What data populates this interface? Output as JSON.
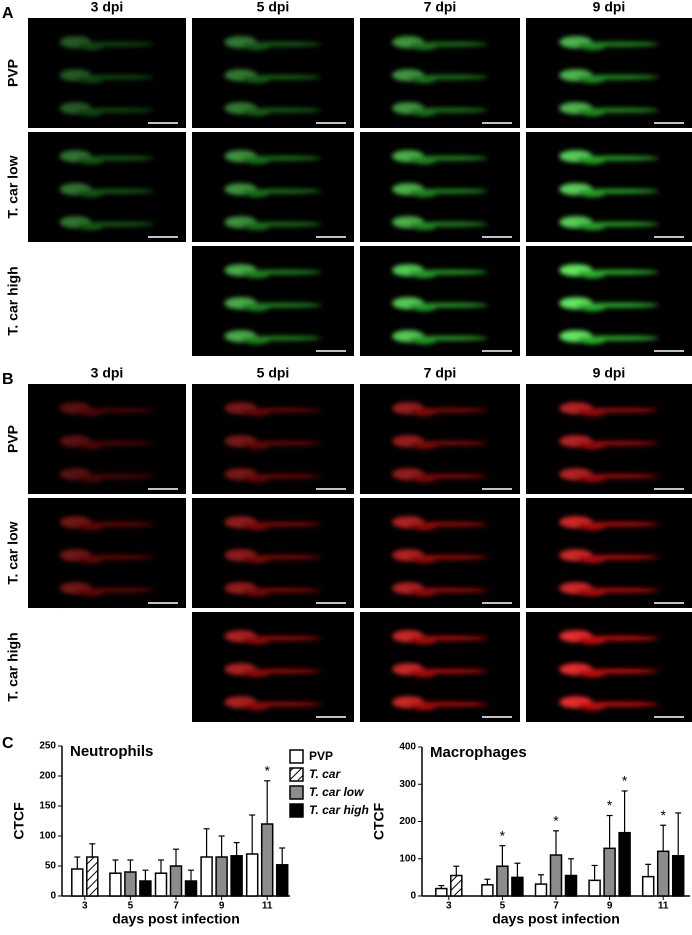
{
  "panels": [
    {
      "letter": "A",
      "columns": [
        "3 dpi",
        "5 dpi",
        "7 dpi",
        "9 dpi"
      ],
      "rows": [
        "PVP",
        "T. car low",
        "T. car high"
      ]
    },
    {
      "letter": "B",
      "columns": [
        "3 dpi",
        "5 dpi",
        "7 dpi",
        "9 dpi"
      ],
      "rows": [
        "PVP",
        "T. car low",
        "T. car high"
      ]
    }
  ],
  "chart_panel_letter": "C",
  "chart_data": [
    {
      "type": "bar",
      "title": "Neutrophils",
      "x_label": "days post infection",
      "y_label": "CTCF",
      "categories": [
        "3",
        "5",
        "7",
        "9",
        "11"
      ],
      "ylim": [
        0,
        250
      ],
      "yticks": [
        0,
        50,
        100,
        150,
        200,
        250
      ],
      "series": [
        {
          "name": "PVP",
          "color": "#ffffff",
          "values": [
            45,
            38,
            38,
            65,
            70
          ],
          "errors": [
            20,
            22,
            22,
            47,
            65
          ],
          "significance": [
            null,
            null,
            null,
            null,
            null
          ]
        },
        {
          "name": "T. car",
          "color": "#ffffff",
          "pattern": "hatch",
          "values": [
            65,
            null,
            null,
            null,
            null
          ],
          "errors": [
            22,
            null,
            null,
            null,
            null
          ],
          "significance": [
            null,
            null,
            null,
            null,
            null
          ]
        },
        {
          "name": "T. car low",
          "color": "#8c8c8c",
          "values": [
            null,
            40,
            50,
            65,
            120
          ],
          "errors": [
            null,
            20,
            28,
            35,
            72
          ],
          "significance": [
            null,
            null,
            null,
            null,
            "*"
          ]
        },
        {
          "name": "T. car high",
          "color": "#000000",
          "values": [
            null,
            25,
            25,
            67,
            52
          ],
          "errors": [
            null,
            18,
            18,
            22,
            28
          ],
          "significance": [
            null,
            null,
            null,
            null,
            null
          ]
        }
      ]
    },
    {
      "type": "bar",
      "title": "Macrophages",
      "x_label": "days post infection",
      "y_label": "CTCF",
      "categories": [
        "3",
        "5",
        "7",
        "9",
        "11"
      ],
      "ylim": [
        0,
        400
      ],
      "yticks": [
        0,
        100,
        200,
        300,
        400
      ],
      "series": [
        {
          "name": "PVP",
          "color": "#ffffff",
          "values": [
            20,
            30,
            32,
            42,
            52
          ],
          "errors": [
            8,
            15,
            25,
            40,
            33
          ],
          "significance": [
            null,
            null,
            null,
            null,
            null
          ]
        },
        {
          "name": "T. car",
          "color": "#ffffff",
          "pattern": "hatch",
          "values": [
            55,
            null,
            null,
            null,
            null
          ],
          "errors": [
            25,
            null,
            null,
            null,
            null
          ],
          "significance": [
            null,
            null,
            null,
            null,
            null
          ]
        },
        {
          "name": "T. car low",
          "color": "#8c8c8c",
          "values": [
            null,
            80,
            110,
            128,
            120
          ],
          "errors": [
            null,
            55,
            65,
            88,
            70
          ],
          "significance": [
            null,
            "*",
            "*",
            "*",
            "*"
          ]
        },
        {
          "name": "T. car high",
          "color": "#000000",
          "values": [
            null,
            50,
            55,
            170,
            108
          ],
          "errors": [
            null,
            38,
            45,
            112,
            115
          ],
          "significance": [
            null,
            null,
            null,
            "*",
            null
          ]
        }
      ]
    }
  ]
}
